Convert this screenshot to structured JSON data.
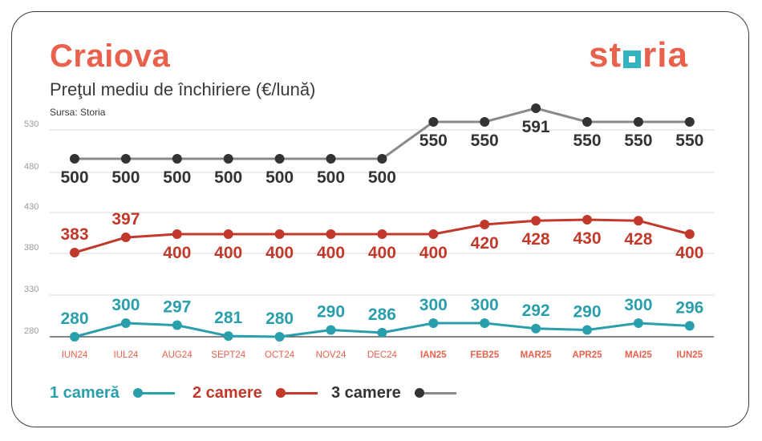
{
  "title": "Craiova",
  "subtitle": "Preţul mediu de închiriere (€/lună)",
  "source": "Sursa: Storia",
  "logo": {
    "before": "st",
    "after": "ria",
    "icon": "square-o-icon"
  },
  "colors": {
    "title": "#e8614d",
    "one_room": "#2a9fac",
    "two_rooms": "#c0392b",
    "three_rooms": "#333333",
    "three_rooms_line": "#8a8a8a",
    "grid": "#d9d9d9",
    "axis_label": "#9a9a9a",
    "month_2024": "#e8614d",
    "month_2025": "#e8614d"
  },
  "chart_data": {
    "type": "line",
    "title": "Preţul mediu de închiriere (€/lună)",
    "categories": [
      "IUN24",
      "IUL24",
      "AUG24",
      "SEPT24",
      "OCT24",
      "NOV24",
      "DEC24",
      "IAN25",
      "FEB25",
      "MAR25",
      "APR25",
      "MAI25",
      "IUN25"
    ],
    "bold_categories_from": 7,
    "yticks": [
      280,
      330,
      380,
      430,
      480,
      530
    ],
    "grid": true,
    "legend_position": "bottom-left",
    "series": [
      {
        "name": "3 camere",
        "key": "three_rooms",
        "values": [
          500,
          500,
          500,
          500,
          500,
          500,
          500,
          550,
          550,
          591,
          550,
          550,
          550
        ],
        "label_pos": [
          "below",
          "below",
          "below",
          "below",
          "below",
          "below",
          "below",
          "below",
          "below",
          "below",
          "below",
          "below",
          "below"
        ]
      },
      {
        "name": "2 camere",
        "key": "two_rooms",
        "values": [
          383,
          397,
          400,
          400,
          400,
          400,
          400,
          400,
          420,
          428,
          430,
          428,
          400
        ],
        "label_pos": [
          "above",
          "above",
          "below",
          "below",
          "below",
          "below",
          "below",
          "below",
          "below",
          "below",
          "below",
          "below",
          "below"
        ]
      },
      {
        "name": "1 cameră",
        "key": "one_room",
        "values": [
          280,
          300,
          297,
          281,
          280,
          290,
          286,
          300,
          300,
          292,
          290,
          300,
          296
        ],
        "label_pos": [
          "above",
          "above",
          "above",
          "above",
          "above",
          "above",
          "above",
          "above",
          "above",
          "above",
          "above",
          "above",
          "above"
        ]
      }
    ]
  },
  "legend": [
    {
      "label": "1 cameră",
      "key": "one_room"
    },
    {
      "label": "2 camere",
      "key": "two_rooms"
    },
    {
      "label": "3 camere",
      "key": "three_rooms"
    }
  ]
}
